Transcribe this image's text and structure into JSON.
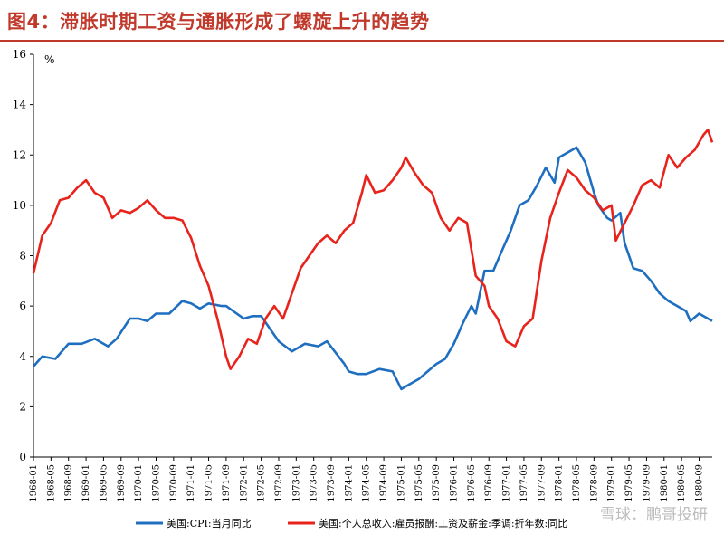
{
  "title": "图4：滞胀时期工资与通胀形成了螺旋上升的趋势",
  "watermark": "雪球：鹏哥投研",
  "chart_data": {
    "type": "line",
    "ylabel": "%",
    "ylim": [
      0,
      16
    ],
    "yticks": [
      0,
      2,
      4,
      6,
      8,
      10,
      12,
      14,
      16
    ],
    "grid": false,
    "legend_placement": "bottom",
    "x_start": "1968-01",
    "x_end": "1980-12",
    "xticks": [
      "1968-01",
      "1968-05",
      "1968-09",
      "1969-01",
      "1969-05",
      "1969-09",
      "1970-01",
      "1970-05",
      "1970-09",
      "1971-01",
      "1971-05",
      "1971-09",
      "1972-01",
      "1972-05",
      "1972-09",
      "1973-01",
      "1973-05",
      "1973-09",
      "1974-01",
      "1974-05",
      "1974-09",
      "1975-01",
      "1975-05",
      "1975-09",
      "1976-01",
      "1976-05",
      "1976-09",
      "1977-01",
      "1977-05",
      "1977-09",
      "1978-01",
      "1978-05",
      "1978-09",
      "1979-01",
      "1979-05",
      "1979-09",
      "1980-01",
      "1980-05",
      "1980-09"
    ],
    "series": [
      {
        "name": "美国:CPI:当月同比",
        "color": "#1f6fc0",
        "points": [
          [
            "1968-01",
            3.6
          ],
          [
            "1968-03",
            4.0
          ],
          [
            "1968-06",
            3.9
          ],
          [
            "1968-09",
            4.5
          ],
          [
            "1968-12",
            4.5
          ],
          [
            "1969-03",
            4.7
          ],
          [
            "1969-06",
            4.4
          ],
          [
            "1969-08",
            4.7
          ],
          [
            "1969-11",
            5.5
          ],
          [
            "1970-01",
            5.5
          ],
          [
            "1970-03",
            5.4
          ],
          [
            "1970-05",
            5.7
          ],
          [
            "1970-08",
            5.7
          ],
          [
            "1970-11",
            6.2
          ],
          [
            "1971-01",
            6.1
          ],
          [
            "1971-03",
            5.9
          ],
          [
            "1971-05",
            6.1
          ],
          [
            "1971-08",
            6.0
          ],
          [
            "1971-09",
            6.0
          ],
          [
            "1972-01",
            5.5
          ],
          [
            "1972-03",
            5.6
          ],
          [
            "1972-05",
            5.6
          ],
          [
            "1972-09",
            4.6
          ],
          [
            "1972-12",
            4.2
          ],
          [
            "1973-03",
            4.5
          ],
          [
            "1973-06",
            4.4
          ],
          [
            "1973-08",
            4.6
          ],
          [
            "1973-12",
            3.7
          ],
          [
            "1974-01",
            3.4
          ],
          [
            "1974-03",
            3.3
          ],
          [
            "1974-05",
            3.3
          ],
          [
            "1974-08",
            3.5
          ],
          [
            "1974-11",
            3.4
          ],
          [
            "1975-01",
            2.7
          ],
          [
            "1975-03",
            2.9
          ],
          [
            "1975-05",
            3.1
          ],
          [
            "1975-07",
            3.4
          ],
          [
            "1975-09",
            3.7
          ],
          [
            "1975-11",
            3.9
          ],
          [
            "1976-01",
            4.5
          ],
          [
            "1976-03",
            5.3
          ],
          [
            "1976-05",
            6.0
          ],
          [
            "1976-06",
            5.7
          ],
          [
            "1976-08",
            7.4
          ],
          [
            "1976-10",
            7.4
          ],
          [
            "1976-12",
            8.2
          ],
          [
            "1977-02",
            9.0
          ],
          [
            "1977-04",
            10.0
          ],
          [
            "1977-06",
            10.2
          ],
          [
            "1977-08",
            10.8
          ],
          [
            "1977-10",
            11.5
          ],
          [
            "1977-12",
            10.9
          ],
          [
            "1978-01",
            11.9
          ],
          [
            "1978-03",
            12.1
          ],
          [
            "1978-05",
            12.3
          ],
          [
            "1978-07",
            11.7
          ],
          [
            "1978-09",
            10.5
          ],
          [
            "1978-10",
            10.0
          ],
          [
            "1978-12",
            9.5
          ],
          [
            "1979-01",
            9.4
          ],
          [
            "1979-03",
            9.7
          ],
          [
            "1979-04",
            8.5
          ],
          [
            "1979-06",
            7.5
          ],
          [
            "1979-08",
            7.4
          ],
          [
            "1979-10",
            7.0
          ],
          [
            "1979-12",
            6.5
          ],
          [
            "1980-02",
            6.2
          ],
          [
            "1980-04",
            6.0
          ],
          [
            "1980-06",
            5.8
          ],
          [
            "1980-07",
            5.4
          ],
          [
            "1980-09",
            5.7
          ],
          [
            "1980-11",
            5.5
          ],
          [
            "1980-12",
            5.4
          ]
        ]
      },
      {
        "name": "美国:个人总收入:雇员报酬:工资及薪金:季调:折年数:同比",
        "color": "#e8231c",
        "points": [
          [
            "1968-01",
            7.3
          ],
          [
            "1968-03",
            8.8
          ],
          [
            "1968-05",
            9.3
          ],
          [
            "1968-07",
            10.2
          ],
          [
            "1968-09",
            10.3
          ],
          [
            "1968-11",
            10.7
          ],
          [
            "1969-01",
            11.0
          ],
          [
            "1969-03",
            10.5
          ],
          [
            "1969-05",
            10.3
          ],
          [
            "1969-07",
            9.5
          ],
          [
            "1969-09",
            9.8
          ],
          [
            "1969-11",
            9.7
          ],
          [
            "1970-01",
            9.9
          ],
          [
            "1970-03",
            10.2
          ],
          [
            "1970-05",
            9.8
          ],
          [
            "1970-07",
            9.5
          ],
          [
            "1970-09",
            9.5
          ],
          [
            "1970-11",
            9.4
          ],
          [
            "1971-01",
            8.7
          ],
          [
            "1971-03",
            7.6
          ],
          [
            "1971-05",
            6.8
          ],
          [
            "1971-07",
            5.5
          ],
          [
            "1971-09",
            4.0
          ],
          [
            "1971-10",
            3.5
          ],
          [
            "1971-12",
            4.0
          ],
          [
            "1972-02",
            4.7
          ],
          [
            "1972-04",
            4.5
          ],
          [
            "1972-06",
            5.5
          ],
          [
            "1972-08",
            6.0
          ],
          [
            "1972-10",
            5.5
          ],
          [
            "1972-12",
            6.5
          ],
          [
            "1973-02",
            7.5
          ],
          [
            "1973-04",
            8.0
          ],
          [
            "1973-06",
            8.5
          ],
          [
            "1973-08",
            8.8
          ],
          [
            "1973-10",
            8.5
          ],
          [
            "1973-12",
            9.0
          ],
          [
            "1974-02",
            9.3
          ],
          [
            "1974-04",
            10.5
          ],
          [
            "1974-05",
            11.2
          ],
          [
            "1974-07",
            10.5
          ],
          [
            "1974-09",
            10.6
          ],
          [
            "1974-11",
            11.0
          ],
          [
            "1975-01",
            11.5
          ],
          [
            "1975-02",
            11.9
          ],
          [
            "1975-04",
            11.3
          ],
          [
            "1975-06",
            10.8
          ],
          [
            "1975-08",
            10.5
          ],
          [
            "1975-10",
            9.5
          ],
          [
            "1975-12",
            9.0
          ],
          [
            "1976-02",
            9.5
          ],
          [
            "1976-04",
            9.3
          ],
          [
            "1976-06",
            7.2
          ],
          [
            "1976-08",
            6.8
          ],
          [
            "1976-09",
            6.0
          ],
          [
            "1976-11",
            5.5
          ],
          [
            "1977-01",
            4.6
          ],
          [
            "1977-03",
            4.4
          ],
          [
            "1977-05",
            5.2
          ],
          [
            "1977-07",
            5.5
          ],
          [
            "1977-09",
            7.8
          ],
          [
            "1977-11",
            9.5
          ],
          [
            "1978-01",
            10.5
          ],
          [
            "1978-03",
            11.4
          ],
          [
            "1978-05",
            11.1
          ],
          [
            "1978-07",
            10.6
          ],
          [
            "1978-09",
            10.3
          ],
          [
            "1978-11",
            9.8
          ],
          [
            "1979-01",
            10.0
          ],
          [
            "1979-02",
            8.6
          ],
          [
            "1979-04",
            9.3
          ],
          [
            "1979-06",
            10.0
          ],
          [
            "1979-08",
            10.8
          ],
          [
            "1979-10",
            11.0
          ],
          [
            "1979-12",
            10.7
          ],
          [
            "1980-02",
            12.0
          ],
          [
            "1980-04",
            11.5
          ],
          [
            "1980-06",
            11.9
          ],
          [
            "1980-08",
            12.2
          ],
          [
            "1980-10",
            12.8
          ],
          [
            "1980-11",
            13.0
          ],
          [
            "1980-12",
            12.5
          ]
        ]
      }
    ]
  }
}
